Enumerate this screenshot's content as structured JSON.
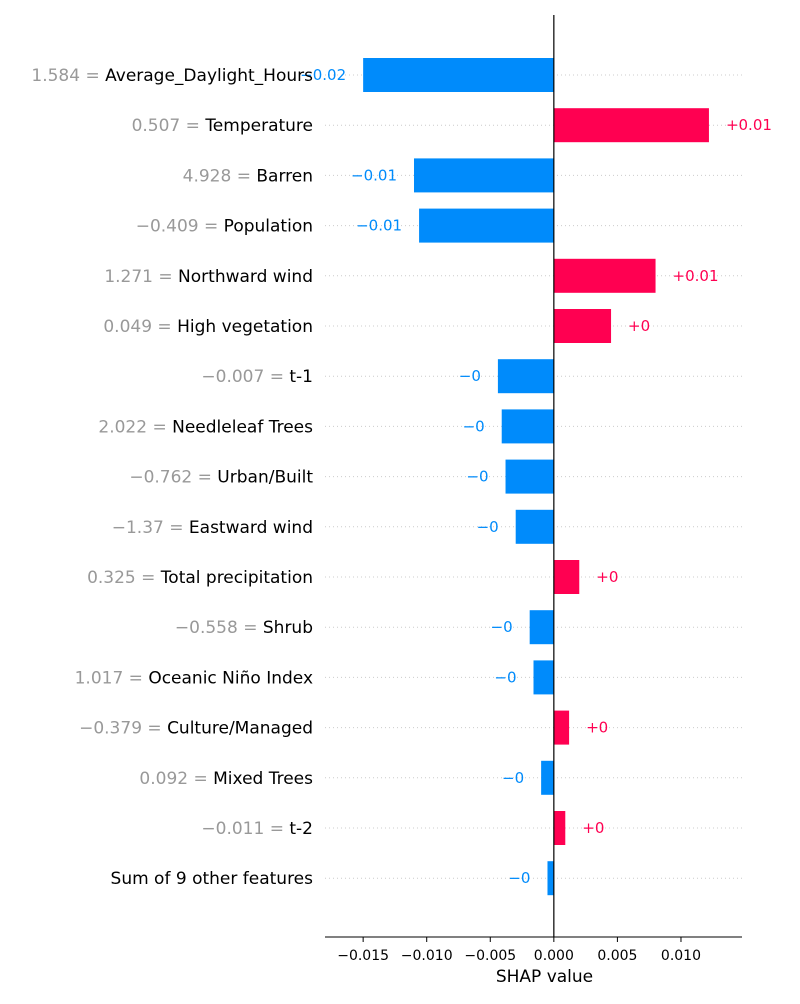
{
  "chart_data": {
    "type": "bar",
    "orientation": "horizontal",
    "xlabel": "SHAP value",
    "ylabel": "",
    "xlim": [
      -0.018,
      0.0148
    ],
    "xticks": [
      -0.015,
      -0.01,
      -0.005,
      0.0,
      0.005,
      0.01
    ],
    "xtick_labels": [
      "−0.015",
      "−0.010",
      "−0.005",
      "0.000",
      "0.005",
      "0.010"
    ],
    "grid": "horizontal dotted",
    "colors": {
      "positive": "#ff0051",
      "negative": "#008bfb",
      "label_value": "#999999",
      "label_name": "#000000"
    },
    "features": [
      {
        "value": "1.584 = ",
        "name": "Average_Daylight_Hours",
        "shap": -0.015,
        "label": "−0.02"
      },
      {
        "value": "0.507 = ",
        "name": "Temperature",
        "shap": 0.0122,
        "label": "+0.01"
      },
      {
        "value": "4.928 = ",
        "name": "Barren",
        "shap": -0.011,
        "label": "−0.01"
      },
      {
        "value": "−0.409 = ",
        "name": "Population",
        "shap": -0.0106,
        "label": "−0.01"
      },
      {
        "value": "1.271 = ",
        "name": "Northward wind",
        "shap": 0.008,
        "label": "+0.01"
      },
      {
        "value": "0.049 = ",
        "name": "High vegetation",
        "shap": 0.0045,
        "label": "+0"
      },
      {
        "value": "−0.007 = ",
        "name": "t-1",
        "shap": -0.0044,
        "label": "−0"
      },
      {
        "value": "2.022 = ",
        "name": "Needleleaf Trees",
        "shap": -0.0041,
        "label": "−0"
      },
      {
        "value": "−0.762 = ",
        "name": "Urban/Built",
        "shap": -0.0038,
        "label": "−0"
      },
      {
        "value": "−1.37 = ",
        "name": "Eastward wind",
        "shap": -0.003,
        "label": "−0"
      },
      {
        "value": "0.325 = ",
        "name": "Total precipitation",
        "shap": 0.002,
        "label": "+0"
      },
      {
        "value": "−0.558 = ",
        "name": "Shrub",
        "shap": -0.0019,
        "label": "−0"
      },
      {
        "value": "1.017 = ",
        "name": "Oceanic Niño Index",
        "shap": -0.0016,
        "label": "−0"
      },
      {
        "value": "−0.379 = ",
        "name": "Culture/Managed",
        "shap": 0.0012,
        "label": "+0"
      },
      {
        "value": "0.092 = ",
        "name": "Mixed Trees",
        "shap": -0.001,
        "label": "−0"
      },
      {
        "value": "−0.011 = ",
        "name": "t-2",
        "shap": 0.0009,
        "label": "+0"
      },
      {
        "value": "",
        "name": "Sum of 9 other features",
        "shap": -0.0005,
        "label": "−0"
      }
    ]
  }
}
